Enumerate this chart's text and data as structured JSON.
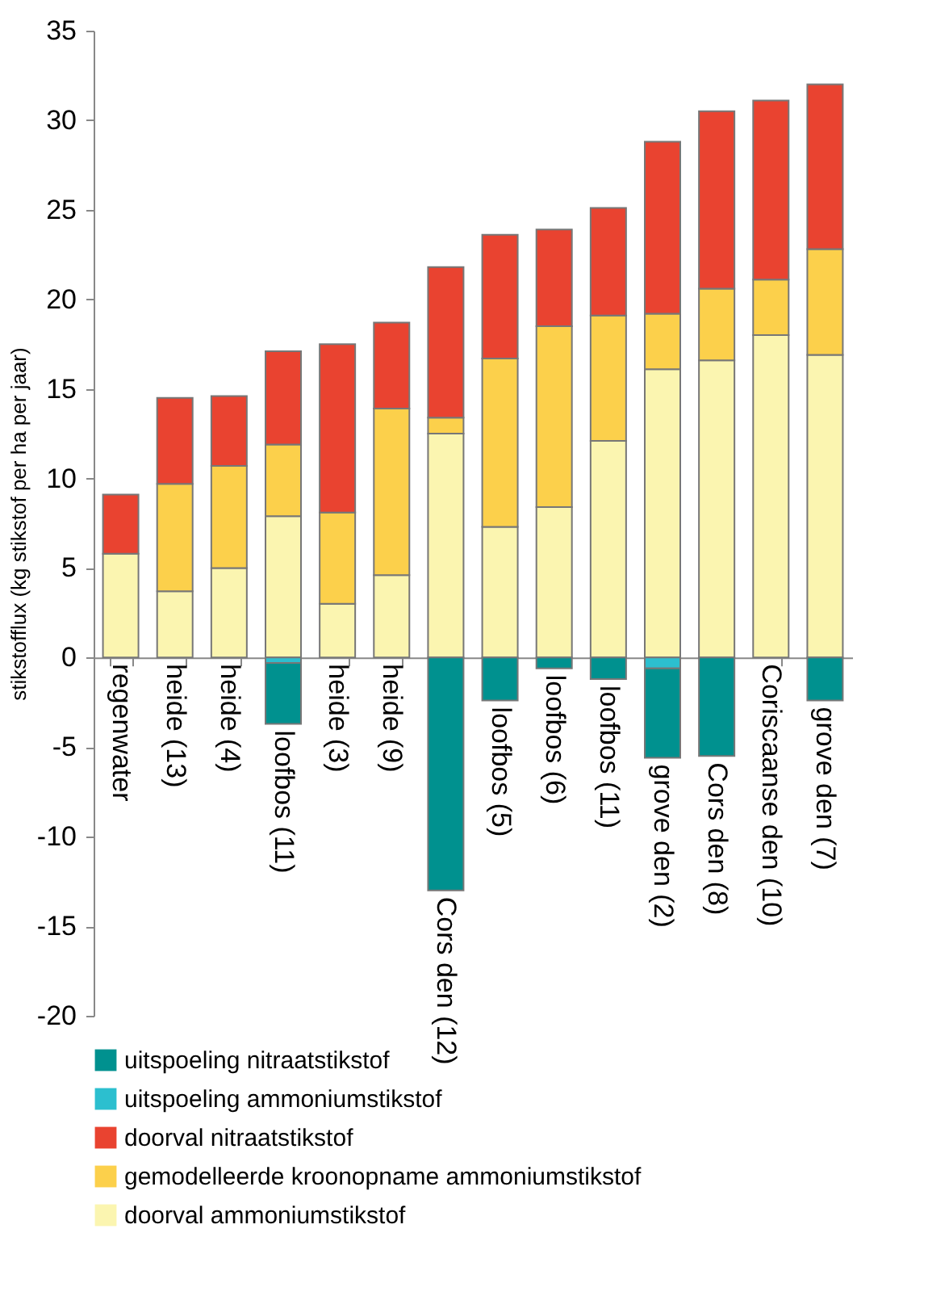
{
  "chart_data": {
    "type": "bar",
    "stacked": true,
    "ylabel": "stikstofflux (kg stikstof per ha per jaar)",
    "categories": [
      "regenwater",
      "heide (13)",
      "heide (4)",
      "loofbos (11)",
      "heide (3)",
      "heide (9)",
      "Cors den (12)",
      "loofbos (5)",
      "loofbos (6)",
      "loofbos (11)",
      "grove den (2)",
      "Cors den (8)",
      "Coriscaanse den (10)",
      "grove den (7)"
    ],
    "series": [
      {
        "name": "doorval ammoniumstikstof",
        "color": "#fbf5b0",
        "values": [
          5.8,
          3.7,
          5.0,
          7.9,
          3.0,
          4.6,
          12.5,
          7.3,
          8.4,
          12.1,
          16.1,
          16.6,
          18.0,
          16.9
        ]
      },
      {
        "name": "gemodelleerde kroonopname ammoniumstikstof",
        "color": "#fcd04b",
        "values": [
          0,
          6.0,
          5.7,
          4.0,
          5.1,
          9.3,
          0.9,
          9.4,
          10.1,
          7.0,
          3.1,
          4.0,
          3.1,
          5.9
        ]
      },
      {
        "name": "doorval nitraatstikstof",
        "color": "#e94330",
        "values": [
          3.3,
          4.8,
          3.9,
          5.2,
          9.4,
          4.8,
          8.4,
          6.9,
          5.4,
          6.0,
          9.6,
          9.9,
          10.0,
          9.2
        ]
      },
      {
        "name": "uitspoeling ammoniumstikstof",
        "color": "#2cbfcf",
        "values": [
          0,
          0,
          0,
          -0.3,
          0,
          0,
          0,
          0,
          0,
          0,
          -0.6,
          0,
          0,
          0
        ]
      },
      {
        "name": "uitspoeling nitraatstikstof",
        "color": "#00918f",
        "values": [
          0,
          0,
          0,
          -3.4,
          0,
          0,
          -13.0,
          -2.4,
          -0.6,
          -1.2,
          -5.0,
          -5.5,
          0,
          -2.4
        ]
      }
    ],
    "ylim": [
      -20,
      35
    ],
    "yticks": [
      -20,
      -15,
      -10,
      -5,
      0,
      5,
      10,
      15,
      20,
      25,
      30,
      35
    ],
    "grid": false,
    "legend": "bottom"
  }
}
